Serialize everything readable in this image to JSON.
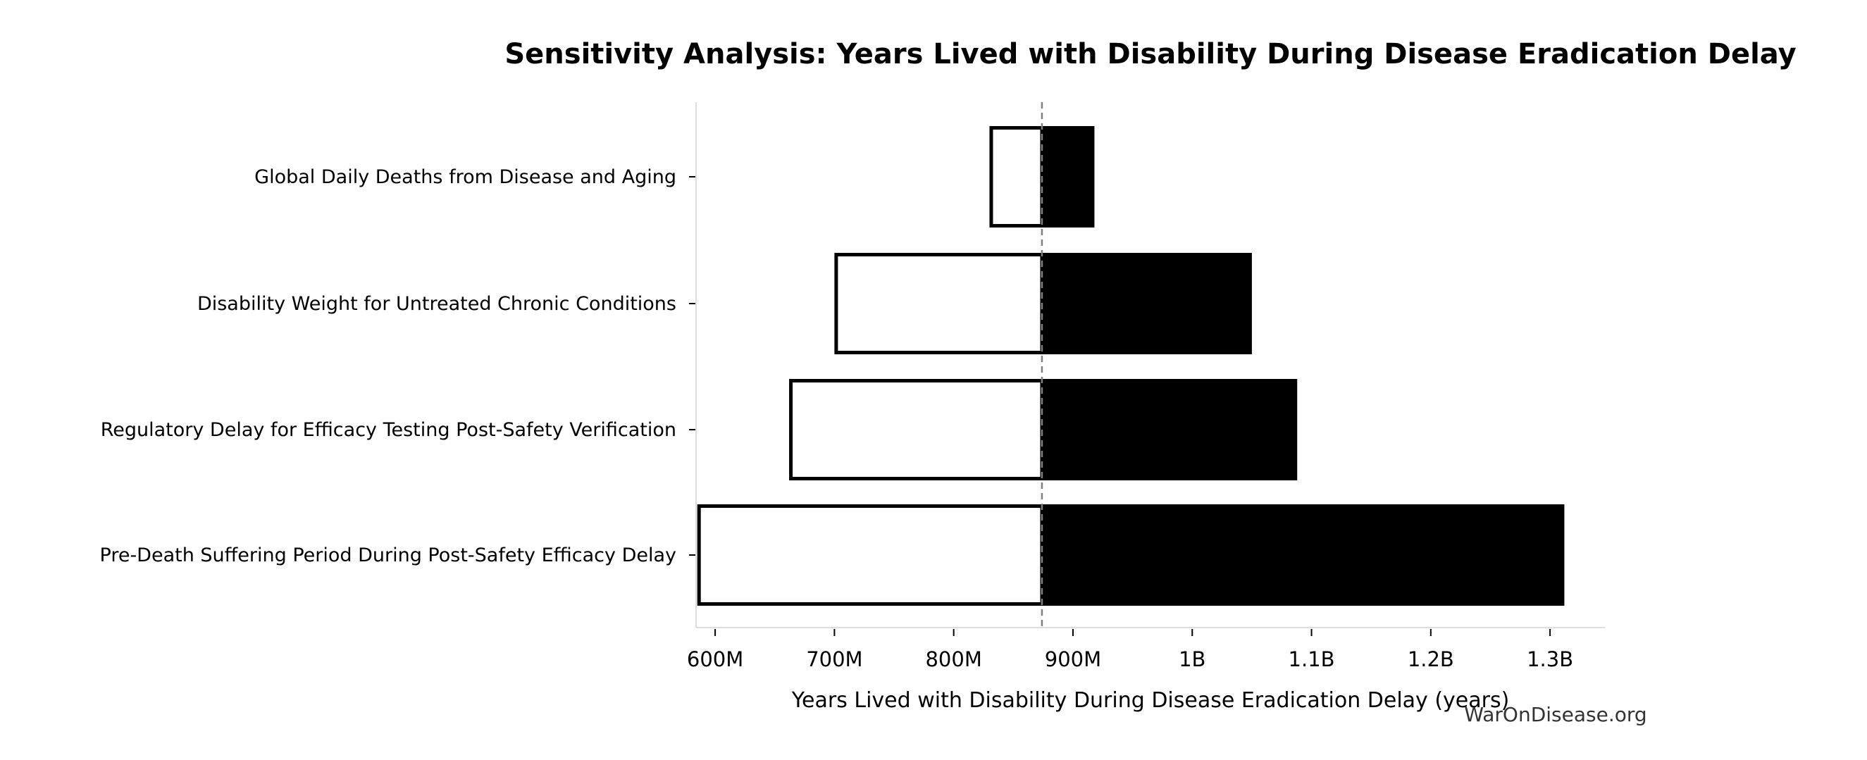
{
  "chart_data": {
    "type": "bar",
    "subtype": "tornado",
    "title": "Sensitivity Analysis: Years Lived with Disability During Disease Eradication Delay",
    "xlabel": "Years Lived with Disability During Disease Eradication Delay (years)",
    "ylabel": "",
    "xlim": [
      584000000,
      1346000000
    ],
    "baseline": 874000000,
    "grid": false,
    "xticks": [
      600000000,
      700000000,
      800000000,
      900000000,
      1000000000,
      1100000000,
      1200000000,
      1300000000
    ],
    "xtick_labels": [
      "600M",
      "700M",
      "800M",
      "900M",
      "1B",
      "1.1B",
      "1.2B",
      "1.3B"
    ],
    "categories": [
      "Global Daily Deaths from Disease and Aging",
      "Disability Weight for Untreated Chronic Conditions",
      "Regulatory Delay for Efficacy Testing Post-Safety Verification",
      "Pre-Death Suffering Period During Post-Safety Efficacy Delay"
    ],
    "low_values": [
      830000000,
      700000000,
      662000000,
      585000000
    ],
    "high_values": [
      918000000,
      1050000000,
      1088000000,
      1312000000
    ],
    "colors": {
      "low_fill": "#ffffff",
      "low_edge": "#000000",
      "high_fill": "#000000",
      "baseline": "#808080",
      "spine": "#dddddd"
    }
  },
  "watermark": "WarOnDisease.org"
}
